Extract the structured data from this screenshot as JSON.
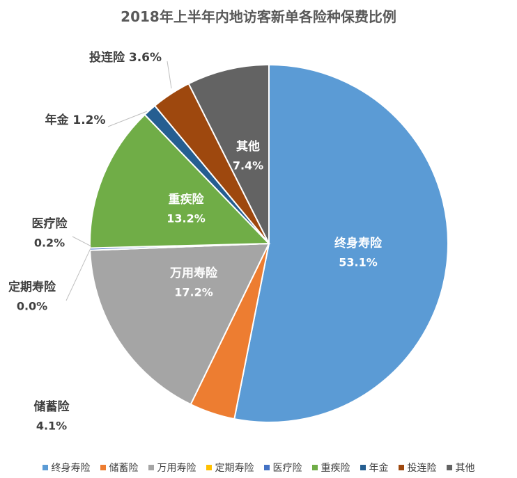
{
  "chart_data": {
    "type": "pie",
    "title": "2018年上半年内地访客新单各险种保费比例",
    "slices": [
      {
        "name": "终身寿险",
        "value": 53.1,
        "label": "53.1%",
        "color": "#5B9BD5"
      },
      {
        "name": "储蓄险",
        "value": 4.1,
        "label": "4.1%",
        "color": "#ED7D31"
      },
      {
        "name": "万用寿险",
        "value": 17.2,
        "label": "17.2%",
        "color": "#A5A5A5"
      },
      {
        "name": "定期寿险",
        "value": 0.0,
        "label": "0.0%",
        "color": "#FFC000"
      },
      {
        "name": "医疗险",
        "value": 0.2,
        "label": "0.2%",
        "color": "#4472C4"
      },
      {
        "name": "重疾险",
        "value": 13.2,
        "label": "13.2%",
        "color": "#70AD47"
      },
      {
        "name": "年金",
        "value": 1.2,
        "label": "1.2%",
        "color": "#255E91"
      },
      {
        "name": "投连险",
        "value": 3.6,
        "label": "3.6%",
        "color": "#9E480E"
      },
      {
        "name": "其他",
        "value": 7.4,
        "label": "7.4%",
        "color": "#636363"
      }
    ],
    "legend_position": "bottom"
  }
}
